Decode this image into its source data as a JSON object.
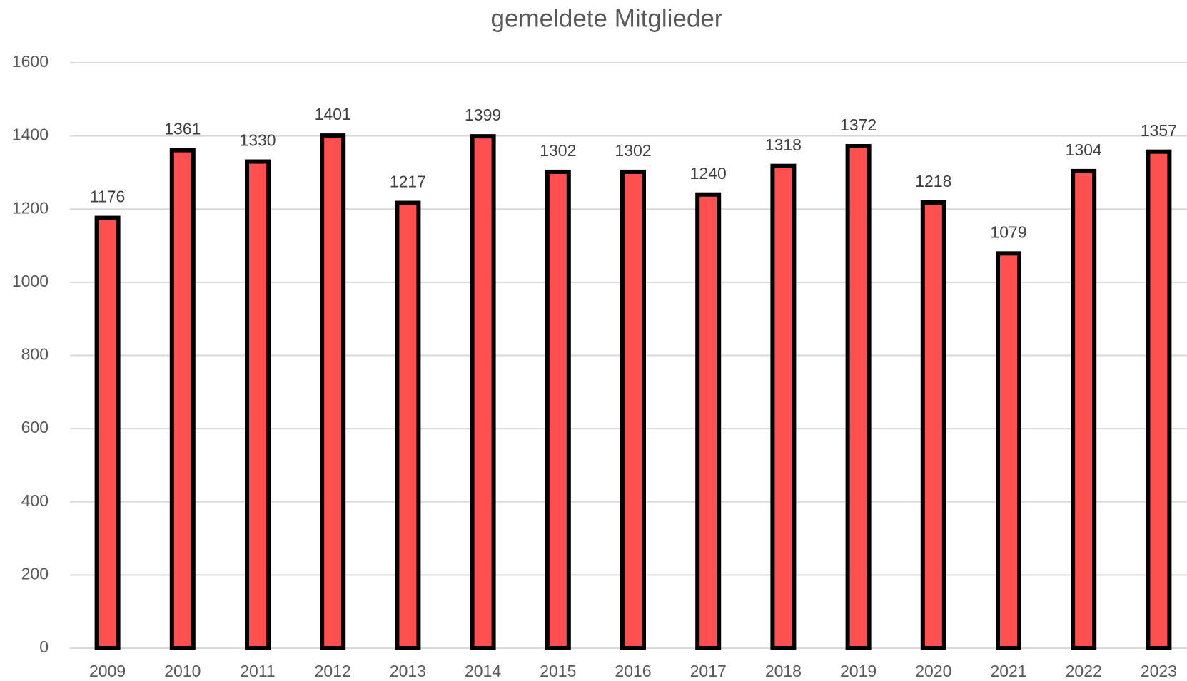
{
  "chart_data": {
    "type": "bar",
    "title": "gemeldete Mitglieder",
    "categories": [
      "2009",
      "2010",
      "2011",
      "2012",
      "2013",
      "2014",
      "2015",
      "2016",
      "2017",
      "2018",
      "2019",
      "2020",
      "2021",
      "2022",
      "2023"
    ],
    "values": [
      1176,
      1361,
      1330,
      1401,
      1217,
      1399,
      1302,
      1302,
      1240,
      1318,
      1372,
      1218,
      1079,
      1304,
      1357
    ],
    "color": "#ff5050",
    "ylim": [
      0,
      1600
    ],
    "yticks": [
      0,
      200,
      400,
      600,
      800,
      1000,
      1200,
      1400,
      1600
    ],
    "grid": true
  }
}
